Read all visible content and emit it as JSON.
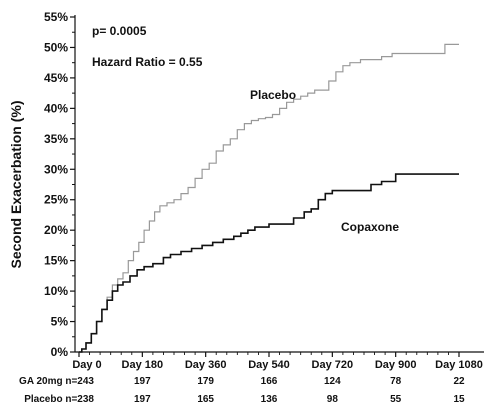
{
  "chart_data": {
    "type": "line",
    "title": "",
    "xlabel": "",
    "ylabel": "Second Exacerbation (%)",
    "xlim": [
      0,
      1100
    ],
    "ylim": [
      0,
      55
    ],
    "x_ticks": [
      0,
      180,
      360,
      540,
      720,
      900,
      1080
    ],
    "x_tick_labels": [
      "Day 0",
      "Day 180",
      "Day 360",
      "Day 540",
      "Day 720",
      "Day 900",
      "Day 1080"
    ],
    "y_ticks": [
      0,
      5,
      10,
      15,
      20,
      25,
      30,
      35,
      40,
      45,
      50,
      55
    ],
    "y_tick_labels": [
      "0%",
      "5%",
      "10%",
      "15%",
      "20%",
      "25%",
      "30%",
      "35%",
      "40%",
      "45%",
      "50%",
      "55%"
    ],
    "grid": false,
    "annotations": {
      "p_value": "p= 0.0005",
      "hazard_ratio": "Hazard Ratio = 0.55"
    },
    "series": [
      {
        "name": "Placebo",
        "color": "#999999",
        "points": [
          [
            0,
            0
          ],
          [
            8,
            0.5
          ],
          [
            20,
            1.5
          ],
          [
            35,
            3
          ],
          [
            50,
            5
          ],
          [
            65,
            7
          ],
          [
            80,
            9
          ],
          [
            95,
            11
          ],
          [
            110,
            12
          ],
          [
            125,
            13
          ],
          [
            140,
            15
          ],
          [
            155,
            16.5
          ],
          [
            170,
            18
          ],
          [
            185,
            20
          ],
          [
            200,
            21.5
          ],
          [
            215,
            23
          ],
          [
            230,
            24
          ],
          [
            250,
            24.5
          ],
          [
            270,
            25
          ],
          [
            290,
            26
          ],
          [
            310,
            27
          ],
          [
            330,
            28.5
          ],
          [
            350,
            30
          ],
          [
            370,
            31
          ],
          [
            390,
            33
          ],
          [
            410,
            34
          ],
          [
            430,
            35
          ],
          [
            450,
            36.5
          ],
          [
            470,
            37.5
          ],
          [
            490,
            38
          ],
          [
            510,
            38.3
          ],
          [
            530,
            38.5
          ],
          [
            550,
            39
          ],
          [
            570,
            40
          ],
          [
            590,
            41
          ],
          [
            610,
            41.5
          ],
          [
            630,
            42
          ],
          [
            650,
            42.5
          ],
          [
            670,
            43
          ],
          [
            690,
            43
          ],
          [
            710,
            44.5
          ],
          [
            730,
            46
          ],
          [
            750,
            47
          ],
          [
            770,
            47.5
          ],
          [
            800,
            48
          ],
          [
            830,
            48
          ],
          [
            860,
            48.5
          ],
          [
            890,
            49
          ],
          [
            920,
            49
          ],
          [
            950,
            49
          ],
          [
            980,
            49
          ],
          [
            1010,
            49
          ],
          [
            1040,
            50.5
          ],
          [
            1080,
            50.5
          ]
        ]
      },
      {
        "name": "Copaxone",
        "color": "#111111",
        "points": [
          [
            0,
            0
          ],
          [
            8,
            0.5
          ],
          [
            20,
            1.5
          ],
          [
            35,
            3
          ],
          [
            50,
            5
          ],
          [
            65,
            7
          ],
          [
            80,
            8.5
          ],
          [
            95,
            10
          ],
          [
            110,
            11
          ],
          [
            125,
            11.5
          ],
          [
            145,
            12.5
          ],
          [
            165,
            13.5
          ],
          [
            185,
            14
          ],
          [
            210,
            14.5
          ],
          [
            240,
            15.5
          ],
          [
            260,
            16
          ],
          [
            290,
            16.5
          ],
          [
            320,
            17
          ],
          [
            350,
            17.5
          ],
          [
            380,
            18
          ],
          [
            410,
            18.5
          ],
          [
            440,
            19
          ],
          [
            460,
            19.5
          ],
          [
            480,
            20
          ],
          [
            500,
            20.5
          ],
          [
            540,
            21
          ],
          [
            580,
            21
          ],
          [
            610,
            22
          ],
          [
            640,
            23
          ],
          [
            660,
            23.5
          ],
          [
            680,
            25
          ],
          [
            700,
            26
          ],
          [
            720,
            26.5
          ],
          [
            760,
            26.5
          ],
          [
            800,
            26.5
          ],
          [
            830,
            27.5
          ],
          [
            860,
            28
          ],
          [
            880,
            28
          ],
          [
            900,
            29.2
          ],
          [
            960,
            29.2
          ],
          [
            1020,
            29.2
          ],
          [
            1080,
            29.2
          ]
        ]
      }
    ],
    "risk_table": {
      "rows": [
        {
          "label": "GA 20mg n=243",
          "values": [
            "197",
            "179",
            "166",
            "124",
            "78",
            "22"
          ]
        },
        {
          "label": "Placebo n=238",
          "values": [
            "197",
            "165",
            "136",
            "98",
            "55",
            "15"
          ]
        }
      ]
    }
  }
}
